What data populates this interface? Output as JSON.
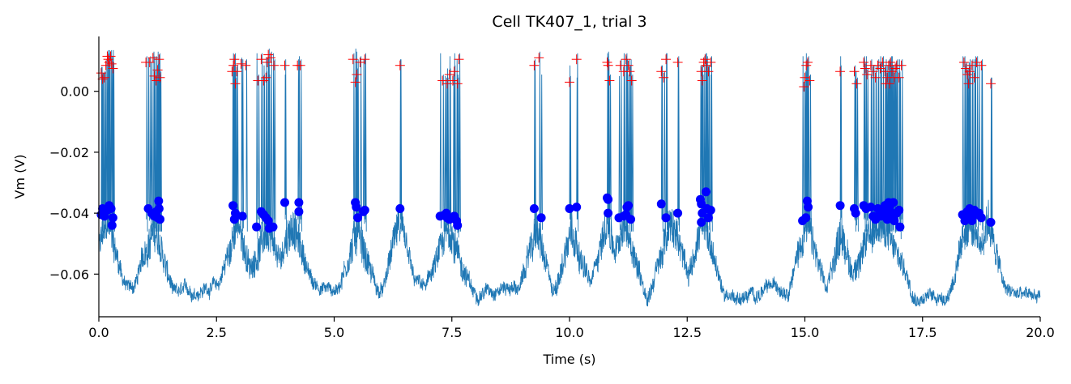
{
  "chart_data": {
    "type": "line",
    "title": "Cell TK407_1,  trial 3",
    "xlabel": "Time (s)",
    "ylabel": "Vm (V)",
    "xlim": [
      0,
      20
    ],
    "ylim": [
      -0.074,
      0.018
    ],
    "xticks": [
      0,
      2.5,
      5,
      7.5,
      10,
      12.5,
      15,
      17.5,
      20
    ],
    "xtick_labels": [
      "0.0",
      "2.5",
      "5.0",
      "7.5",
      "10.0",
      "12.5",
      "15.0",
      "17.5",
      "20.0"
    ],
    "yticks": [
      0.0,
      -0.02,
      -0.04,
      -0.06
    ],
    "ytick_labels": [
      "0.00",
      "−0.02",
      "−0.04",
      "−0.06"
    ],
    "grid": false,
    "colors": {
      "trace": "#1f77b4",
      "spike_threshold": "#0000ff",
      "spike_peak": "#ff0000",
      "axis": "#000000"
    },
    "bursts": [
      {
        "start": 0.0,
        "end": 0.32
      },
      {
        "start": 1.0,
        "end": 1.35
      },
      {
        "start": 2.8,
        "end": 3.1
      },
      {
        "start": 3.3,
        "end": 3.8
      },
      {
        "start": 3.9,
        "end": 4.3
      },
      {
        "start": 5.3,
        "end": 5.7
      },
      {
        "start": 6.3,
        "end": 6.45
      },
      {
        "start": 7.2,
        "end": 7.7
      },
      {
        "start": 9.2,
        "end": 9.4
      },
      {
        "start": 9.9,
        "end": 10.2
      },
      {
        "start": 10.7,
        "end": 10.9
      },
      {
        "start": 11.0,
        "end": 11.4
      },
      {
        "start": 11.9,
        "end": 12.4
      },
      {
        "start": 12.7,
        "end": 13.0
      },
      {
        "start": 14.9,
        "end": 15.2
      },
      {
        "start": 15.7,
        "end": 15.85
      },
      {
        "start": 16.0,
        "end": 17.1
      },
      {
        "start": 18.3,
        "end": 18.7
      },
      {
        "start": 18.8,
        "end": 19.0
      }
    ],
    "series": [
      {
        "name": "spike thresholds",
        "points": [
          [
            0.05,
            -0.0405
          ],
          [
            0.08,
            -0.0385
          ],
          [
            0.12,
            -0.041
          ],
          [
            0.18,
            -0.039
          ],
          [
            0.22,
            -0.0375
          ],
          [
            0.26,
            -0.0385
          ],
          [
            0.28,
            -0.044
          ],
          [
            0.3,
            -0.0415
          ],
          [
            1.05,
            -0.0385
          ],
          [
            1.12,
            -0.04
          ],
          [
            1.18,
            -0.041
          ],
          [
            1.22,
            -0.0395
          ],
          [
            1.25,
            -0.0415
          ],
          [
            1.28,
            -0.0385
          ],
          [
            1.3,
            -0.042
          ],
          [
            1.27,
            -0.036
          ],
          [
            2.85,
            -0.0375
          ],
          [
            2.9,
            -0.04
          ],
          [
            2.88,
            -0.042
          ],
          [
            3.05,
            -0.041
          ],
          [
            3.35,
            -0.0445
          ],
          [
            3.45,
            -0.0395
          ],
          [
            3.5,
            -0.0405
          ],
          [
            3.55,
            -0.0415
          ],
          [
            3.6,
            -0.0425
          ],
          [
            3.62,
            -0.045
          ],
          [
            3.7,
            -0.0445
          ],
          [
            3.95,
            -0.0365
          ],
          [
            4.25,
            -0.0365
          ],
          [
            4.25,
            -0.0395
          ],
          [
            5.45,
            -0.0365
          ],
          [
            5.47,
            -0.038
          ],
          [
            5.5,
            -0.0415
          ],
          [
            5.65,
            -0.039
          ],
          [
            5.62,
            -0.0395
          ],
          [
            6.4,
            -0.0385
          ],
          [
            7.25,
            -0.041
          ],
          [
            7.35,
            -0.0405
          ],
          [
            7.4,
            -0.0415
          ],
          [
            7.45,
            -0.042
          ],
          [
            7.55,
            -0.041
          ],
          [
            7.6,
            -0.0425
          ],
          [
            7.62,
            -0.044
          ],
          [
            7.38,
            -0.04
          ],
          [
            9.25,
            -0.0385
          ],
          [
            9.4,
            -0.0415
          ],
          [
            10.0,
            -0.0385
          ],
          [
            10.15,
            -0.038
          ],
          [
            10.8,
            -0.035
          ],
          [
            10.82,
            -0.0355
          ],
          [
            10.82,
            -0.04
          ],
          [
            11.05,
            -0.0415
          ],
          [
            11.15,
            -0.041
          ],
          [
            11.2,
            -0.0405
          ],
          [
            11.22,
            -0.038
          ],
          [
            11.25,
            -0.0375
          ],
          [
            11.3,
            -0.042
          ],
          [
            11.95,
            -0.037
          ],
          [
            12.05,
            -0.0415
          ],
          [
            12.3,
            -0.04
          ],
          [
            12.78,
            -0.0355
          ],
          [
            12.8,
            -0.037
          ],
          [
            12.82,
            -0.04
          ],
          [
            12.8,
            -0.043
          ],
          [
            12.9,
            -0.033
          ],
          [
            12.92,
            -0.0385
          ],
          [
            12.95,
            -0.0415
          ],
          [
            13.0,
            -0.039
          ],
          [
            14.95,
            -0.0425
          ],
          [
            15.02,
            -0.0415
          ],
          [
            15.05,
            -0.036
          ],
          [
            15.07,
            -0.038
          ],
          [
            15.75,
            -0.0375
          ],
          [
            16.05,
            -0.0385
          ],
          [
            16.08,
            -0.04
          ],
          [
            16.25,
            -0.0375
          ],
          [
            16.3,
            -0.0385
          ],
          [
            16.4,
            -0.038
          ],
          [
            16.45,
            -0.041
          ],
          [
            16.5,
            -0.042
          ],
          [
            16.55,
            -0.0385
          ],
          [
            16.6,
            -0.0395
          ],
          [
            16.62,
            -0.041
          ],
          [
            16.7,
            -0.0375
          ],
          [
            16.72,
            -0.0395
          ],
          [
            16.75,
            -0.042
          ],
          [
            16.78,
            -0.0365
          ],
          [
            16.8,
            -0.038
          ],
          [
            16.82,
            -0.0395
          ],
          [
            16.85,
            -0.0415
          ],
          [
            16.88,
            -0.0365
          ],
          [
            16.9,
            -0.0425
          ],
          [
            16.95,
            -0.04
          ],
          [
            17.0,
            -0.039
          ],
          [
            17.02,
            -0.0445
          ],
          [
            18.35,
            -0.0405
          ],
          [
            18.4,
            -0.0425
          ],
          [
            18.45,
            -0.0395
          ],
          [
            18.48,
            -0.0415
          ],
          [
            18.5,
            -0.0385
          ],
          [
            18.55,
            -0.0425
          ],
          [
            18.6,
            -0.039
          ],
          [
            18.62,
            -0.0405
          ],
          [
            18.7,
            -0.04
          ],
          [
            18.75,
            -0.0415
          ],
          [
            18.95,
            -0.043
          ]
        ]
      },
      {
        "name": "spike peaks",
        "points": [
          [
            0.05,
            0.006
          ],
          [
            0.08,
            0.004
          ],
          [
            0.12,
            0.0045
          ],
          [
            0.15,
            0.0085
          ],
          [
            0.18,
            0.0115
          ],
          [
            0.2,
            0.0105
          ],
          [
            0.22,
            0.0095
          ],
          [
            0.25,
            0.0115
          ],
          [
            0.27,
            0.009
          ],
          [
            0.3,
            0.0075
          ],
          [
            1.0,
            0.0095
          ],
          [
            1.08,
            0.0095
          ],
          [
            1.15,
            0.011
          ],
          [
            1.18,
            0.005
          ],
          [
            1.22,
            0.0035
          ],
          [
            1.25,
            0.007
          ],
          [
            1.28,
            0.0105
          ],
          [
            1.3,
            0.0045
          ],
          [
            2.83,
            0.0065
          ],
          [
            2.86,
            0.0085
          ],
          [
            2.88,
            0.0105
          ],
          [
            2.9,
            0.0025
          ],
          [
            2.93,
            0.0065
          ],
          [
            3.02,
            0.009
          ],
          [
            3.12,
            0.0085
          ],
          [
            3.38,
            0.0035
          ],
          [
            3.45,
            0.0105
          ],
          [
            3.5,
            0.0035
          ],
          [
            3.55,
            0.0045
          ],
          [
            3.58,
            0.0095
          ],
          [
            3.6,
            0.012
          ],
          [
            3.65,
            0.011
          ],
          [
            3.72,
            0.0085
          ],
          [
            3.95,
            0.0085
          ],
          [
            4.22,
            0.0085
          ],
          [
            4.28,
            0.0085
          ],
          [
            5.4,
            0.0105
          ],
          [
            5.45,
            0.003
          ],
          [
            5.48,
            0.0055
          ],
          [
            5.55,
            0.0095
          ],
          [
            5.65,
            0.0105
          ],
          [
            6.4,
            0.0085
          ],
          [
            7.3,
            0.0035
          ],
          [
            7.4,
            0.0025
          ],
          [
            7.45,
            0.0055
          ],
          [
            7.52,
            0.0035
          ],
          [
            7.55,
            0.0065
          ],
          [
            7.62,
            0.0025
          ],
          [
            7.65,
            0.0105
          ],
          [
            9.25,
            0.0085
          ],
          [
            9.35,
            0.011
          ],
          [
            10.0,
            0.003
          ],
          [
            10.15,
            0.0105
          ],
          [
            10.8,
            0.0095
          ],
          [
            10.82,
            0.0085
          ],
          [
            10.85,
            0.0035
          ],
          [
            11.08,
            0.0085
          ],
          [
            11.15,
            0.0065
          ],
          [
            11.2,
            0.0105
          ],
          [
            11.25,
            0.0085
          ],
          [
            11.28,
            0.0065
          ],
          [
            11.32,
            0.0035
          ],
          [
            11.95,
            0.0065
          ],
          [
            12.0,
            0.0045
          ],
          [
            12.05,
            0.0105
          ],
          [
            12.3,
            0.0095
          ],
          [
            12.8,
            0.0065
          ],
          [
            12.82,
            0.0035
          ],
          [
            12.85,
            0.0095
          ],
          [
            12.88,
            0.0105
          ],
          [
            12.9,
            0.0085
          ],
          [
            12.95,
            0.0065
          ],
          [
            13.0,
            0.0095
          ],
          [
            14.98,
            0.0015
          ],
          [
            15.0,
            0.0045
          ],
          [
            15.03,
            0.0085
          ],
          [
            15.06,
            0.0095
          ],
          [
            15.1,
            0.0035
          ],
          [
            15.75,
            0.0065
          ],
          [
            16.05,
            0.0065
          ],
          [
            16.1,
            0.0025
          ],
          [
            16.25,
            0.0095
          ],
          [
            16.28,
            0.0075
          ],
          [
            16.32,
            0.0055
          ],
          [
            16.4,
            0.0085
          ],
          [
            16.45,
            0.0065
          ],
          [
            16.5,
            0.0045
          ],
          [
            16.55,
            0.0085
          ],
          [
            16.6,
            0.0075
          ],
          [
            16.65,
            0.0095
          ],
          [
            16.7,
            0.0065
          ],
          [
            16.72,
            0.0025
          ],
          [
            16.75,
            0.0045
          ],
          [
            16.78,
            0.0085
          ],
          [
            16.8,
            0.0025
          ],
          [
            16.82,
            0.0095
          ],
          [
            16.85,
            0.0065
          ],
          [
            16.9,
            0.0045
          ],
          [
            16.92,
            0.0075
          ],
          [
            16.95,
            0.0085
          ],
          [
            17.0,
            0.0045
          ],
          [
            17.05,
            0.0085
          ],
          [
            18.38,
            0.0095
          ],
          [
            18.42,
            0.0075
          ],
          [
            18.45,
            0.0055
          ],
          [
            18.48,
            0.0025
          ],
          [
            18.5,
            0.0065
          ],
          [
            18.55,
            0.0085
          ],
          [
            18.6,
            0.0045
          ],
          [
            18.65,
            0.0095
          ],
          [
            18.75,
            0.0085
          ],
          [
            18.95,
            0.0025
          ]
        ]
      }
    ]
  }
}
